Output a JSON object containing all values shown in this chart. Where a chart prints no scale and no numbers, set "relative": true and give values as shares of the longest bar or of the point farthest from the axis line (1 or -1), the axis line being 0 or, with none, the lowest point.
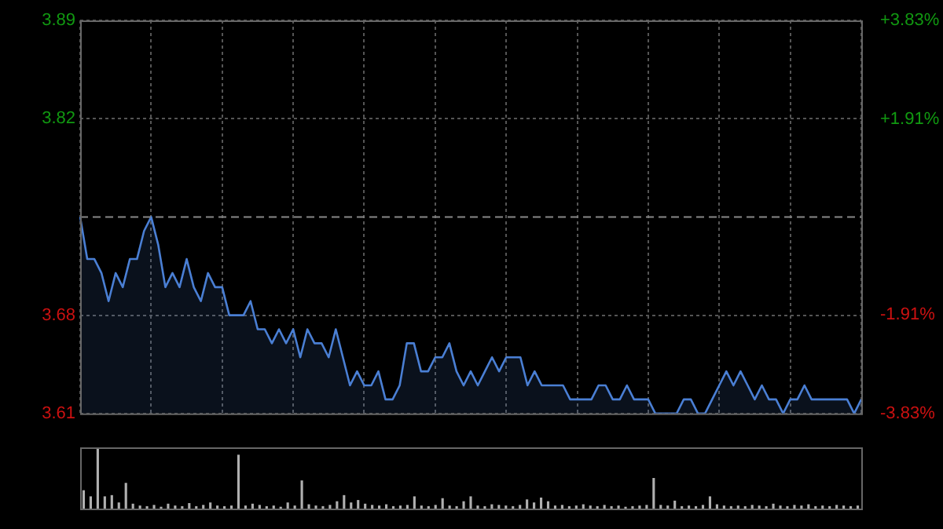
{
  "chart_data": [
    {
      "type": "area",
      "categories": [
        null,
        null,
        null,
        null,
        null,
        null,
        null,
        null,
        null,
        null,
        null,
        null,
        null,
        null,
        null,
        null,
        null,
        null,
        null,
        null,
        null,
        null,
        null,
        null,
        null,
        null,
        null,
        null,
        null,
        null,
        null,
        null,
        null,
        null,
        null,
        null,
        null,
        null,
        null,
        null,
        null,
        null,
        null,
        null,
        null,
        null,
        null,
        null,
        null,
        null,
        null,
        null,
        null,
        null,
        null,
        null,
        null,
        null,
        null,
        null,
        null,
        null,
        null,
        null,
        null,
        null,
        null,
        null,
        null,
        null,
        null,
        null,
        null,
        null,
        null,
        null,
        null,
        null,
        null,
        null,
        null,
        null,
        null,
        null,
        null,
        null,
        null,
        null,
        null,
        null,
        null,
        null,
        null,
        null,
        null,
        null,
        null,
        null,
        null,
        null,
        null,
        null,
        null,
        null,
        null,
        null,
        null,
        null,
        null,
        null,
        null
      ],
      "values": [
        3.75,
        3.72,
        3.72,
        3.71,
        3.69,
        3.71,
        3.7,
        3.72,
        3.72,
        3.74,
        3.75,
        3.73,
        3.7,
        3.71,
        3.7,
        3.72,
        3.7,
        3.69,
        3.71,
        3.7,
        3.7,
        3.68,
        3.68,
        3.68,
        3.69,
        3.67,
        3.67,
        3.66,
        3.67,
        3.66,
        3.67,
        3.65,
        3.67,
        3.66,
        3.66,
        3.65,
        3.67,
        3.65,
        3.63,
        3.64,
        3.63,
        3.63,
        3.64,
        3.62,
        3.62,
        3.63,
        3.66,
        3.66,
        3.64,
        3.64,
        3.65,
        3.65,
        3.66,
        3.64,
        3.63,
        3.64,
        3.63,
        3.64,
        3.65,
        3.64,
        3.65,
        3.65,
        3.65,
        3.63,
        3.64,
        3.63,
        3.63,
        3.63,
        3.63,
        3.62,
        3.62,
        3.62,
        3.62,
        3.63,
        3.63,
        3.62,
        3.62,
        3.63,
        3.62,
        3.62,
        3.62,
        3.61,
        3.61,
        3.61,
        3.61,
        3.62,
        3.62,
        3.61,
        3.61,
        3.62,
        3.63,
        3.64,
        3.63,
        3.64,
        3.63,
        3.62,
        3.63,
        3.62,
        3.62,
        3.61,
        3.62,
        3.62,
        3.63,
        3.62,
        3.62,
        3.62,
        3.62,
        3.62,
        3.62,
        3.61,
        3.62
      ],
      "color": "#4a7fd4",
      "ylim": [
        3.61,
        3.89
      ],
      "yticks": [
        3.89,
        3.82,
        3.68,
        3.61
      ],
      "y2lim": [
        -3.83,
        3.83
      ],
      "y2ticks": [
        {
          "value": 3.83,
          "label": "+3.83%"
        },
        {
          "value": 1.91,
          "label": "+1.91%"
        },
        {
          "value": -1.91,
          "label": "-1.91%"
        },
        {
          "value": -3.83,
          "label": "-3.83%"
        }
      ],
      "ref_lines": [
        {
          "axis": "y",
          "value": 3.75,
          "color": "#888888",
          "line_style": "dashed"
        }
      ],
      "grid": true,
      "tick_labels": "y",
      "legend": false
    },
    {
      "type": "bar",
      "relative": true,
      "color": "#b0b0b0",
      "categories": [
        null,
        null,
        null,
        null,
        null,
        null,
        null,
        null,
        null,
        null,
        null,
        null,
        null,
        null,
        null,
        null,
        null,
        null,
        null,
        null,
        null,
        null,
        null,
        null,
        null,
        null,
        null,
        null,
        null,
        null,
        null,
        null,
        null,
        null,
        null,
        null,
        null,
        null,
        null,
        null,
        null,
        null,
        null,
        null,
        null,
        null,
        null,
        null,
        null,
        null,
        null,
        null,
        null,
        null,
        null,
        null,
        null,
        null,
        null,
        null,
        null,
        null,
        null,
        null,
        null,
        null,
        null,
        null,
        null,
        null,
        null,
        null,
        null,
        null,
        null,
        null,
        null,
        null,
        null,
        null,
        null,
        null,
        null,
        null,
        null,
        null,
        null,
        null,
        null,
        null,
        null,
        null,
        null,
        null,
        null,
        null,
        null,
        null,
        null,
        null,
        null,
        null,
        null,
        null,
        null,
        null,
        null,
        null,
        null,
        null,
        null
      ],
      "values": [
        0.3,
        0.2,
        1,
        0.2,
        0.22,
        0.1,
        0.42,
        0.08,
        0.05,
        0.04,
        0.06,
        0.03,
        0.08,
        0.05,
        0.04,
        0.09,
        0.04,
        0.06,
        0.1,
        0.05,
        0.04,
        0.05,
        0.88,
        0.05,
        0.08,
        0.06,
        0.04,
        0.05,
        0.03,
        0.1,
        0.05,
        0.46,
        0.07,
        0.05,
        0.04,
        0.06,
        0.12,
        0.22,
        0.1,
        0.14,
        0.08,
        0.06,
        0.05,
        0.07,
        0.04,
        0.05,
        0.06,
        0.2,
        0.05,
        0.04,
        0.06,
        0.17,
        0.05,
        0.04,
        0.12,
        0.2,
        0.05,
        0.04,
        0.07,
        0.06,
        0.05,
        0.04,
        0.06,
        0.15,
        0.1,
        0.18,
        0.12,
        0.05,
        0.06,
        0.04,
        0.05,
        0.07,
        0.05,
        0.04,
        0.06,
        0.04,
        0.05,
        0.03,
        0.04,
        0.05,
        0.06,
        0.5,
        0.06,
        0.05,
        0.13,
        0.04,
        0.05,
        0.04,
        0.06,
        0.2,
        0.07,
        0.05,
        0.04,
        0.05,
        0.04,
        0.06,
        0.05,
        0.04,
        0.08,
        0.05,
        0.04,
        0.06,
        0.05,
        0.07,
        0.04,
        0.05,
        0.04,
        0.06,
        0.05,
        0.04,
        0.05
      ],
      "grid": false,
      "tick_labels": false,
      "legend": false
    }
  ]
}
